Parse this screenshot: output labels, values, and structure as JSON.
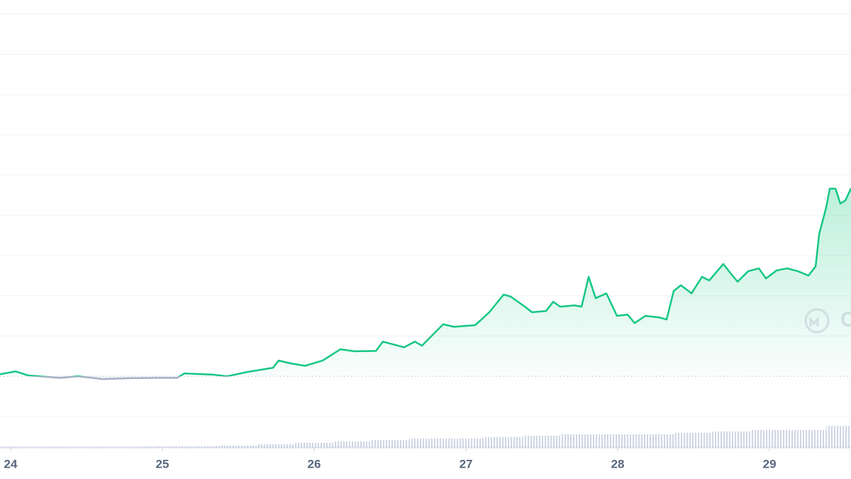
{
  "chart_data": {
    "type": "line",
    "x": [
      23.93,
      24.033,
      24.117,
      24.327,
      24.444,
      24.607,
      24.771,
      24.958,
      25.098,
      25.145,
      25.332,
      25.425,
      25.565,
      25.729,
      25.766,
      25.846,
      25.939,
      26.056,
      26.173,
      26.266,
      26.407,
      26.453,
      26.593,
      26.664,
      26.71,
      26.85,
      26.921,
      27.061,
      27.154,
      27.248,
      27.294,
      27.388,
      27.435,
      27.528,
      27.575,
      27.621,
      27.715,
      27.762,
      27.808,
      27.855,
      27.925,
      27.995,
      28.065,
      28.112,
      28.182,
      28.276,
      28.322,
      28.369,
      28.416,
      28.486,
      28.556,
      28.603,
      28.696,
      28.743,
      28.79,
      28.86,
      28.93,
      28.977,
      29.047,
      29.117,
      29.187,
      29.257,
      29.304,
      29.327,
      29.374,
      29.397,
      29.435,
      29.467,
      29.5,
      29.537
    ],
    "series": [
      {
        "color": "#16c784",
        "values": [
          0.05,
          0.12,
          0.02,
          -0.04,
          0,
          -0.07,
          -0.05,
          -0.04,
          -0.04,
          0.07,
          0.04,
          0,
          0.11,
          0.21,
          0.39,
          0.32,
          0.26,
          0.39,
          0.67,
          0.62,
          0.63,
          0.86,
          0.72,
          0.86,
          0.76,
          1.29,
          1.23,
          1.27,
          1.59,
          2.03,
          1.98,
          1.73,
          1.59,
          1.62,
          1.85,
          1.73,
          1.76,
          1.73,
          2.47,
          1.94,
          2.06,
          1.5,
          1.53,
          1.32,
          1.5,
          1.46,
          1.41,
          2.12,
          2.26,
          2.06,
          2.47,
          2.38,
          2.79,
          2.56,
          2.35,
          2.61,
          2.68,
          2.43,
          2.63,
          2.68,
          2.61,
          2.5,
          2.73,
          3.53,
          4.2,
          4.66,
          4.66,
          4.29,
          4.37,
          4.67
        ]
      }
    ],
    "below_color": "#a6b0c3",
    "baseline": 0,
    "xlim": [
      23.93,
      29.537
    ],
    "xticks": [
      24,
      25,
      26,
      27,
      28,
      29
    ],
    "ylim": [
      -1.76,
      9.35
    ],
    "yticks": [
      -1,
      0,
      1,
      2,
      3,
      4,
      5,
      6,
      7,
      8,
      9
    ],
    "grid": true,
    "volume": {
      "color": "#cfd6e4",
      "x": [
        24,
        24.25,
        24.5,
        24.75,
        25,
        25.25,
        25.5,
        25.75,
        26,
        26.25,
        26.5,
        26.75,
        27,
        27.25,
        27.5,
        27.75,
        28,
        28.25,
        28.5,
        28.75,
        29,
        29.25,
        29.5
      ],
      "values": [
        0.05,
        0.05,
        0.05,
        0.05,
        0.07,
        0.08,
        0.1,
        0.15,
        0.2,
        0.25,
        0.3,
        0.35,
        0.35,
        0.4,
        0.45,
        0.5,
        0.5,
        0.5,
        0.55,
        0.6,
        0.65,
        0.65,
        0.8
      ],
      "ylim": [
        0,
        1
      ]
    },
    "watermark": "C"
  }
}
